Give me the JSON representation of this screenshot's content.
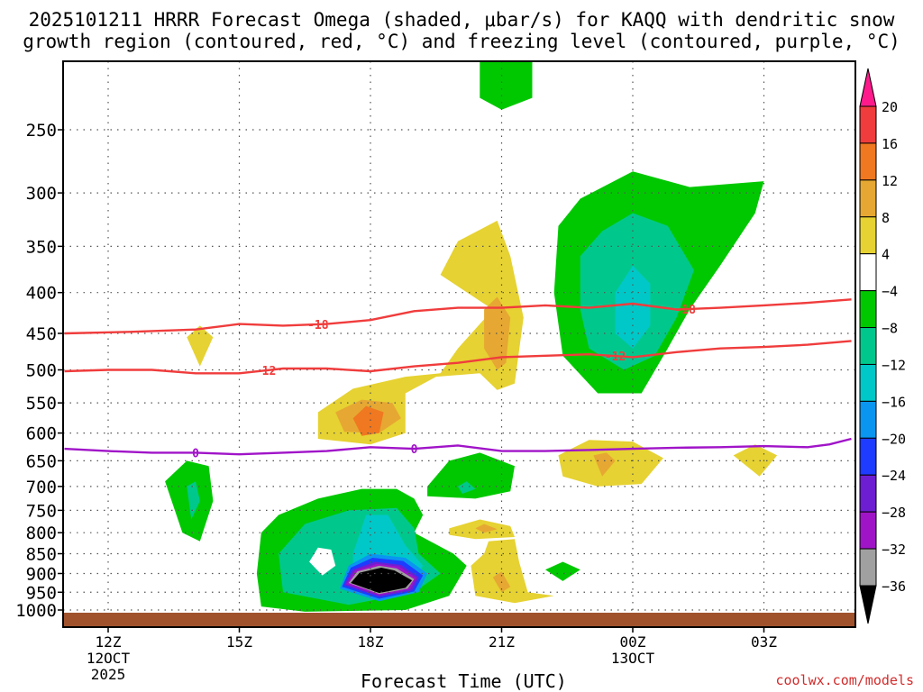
{
  "chart_data": {
    "type": "contour",
    "title": "2025101211 HRRR Forecast Omega (shaded, μbar/s) for KAQQ with dendritic snow",
    "title_line2": "growth region (contoured, red, °C) and freezing level (contoured, purple, °C)",
    "xlabel": "Forecast Time (UTC)",
    "ylabel": "",
    "y_ticks": [
      250,
      300,
      350,
      400,
      450,
      500,
      550,
      600,
      650,
      700,
      750,
      800,
      850,
      900,
      950,
      1000
    ],
    "x_ticks": [
      {
        "hour": 12,
        "label": "12Z",
        "sub1": "12OCT",
        "sub2": "2025"
      },
      {
        "hour": 15,
        "label": "15Z",
        "sub1": "",
        "sub2": ""
      },
      {
        "hour": 18,
        "label": "18Z",
        "sub1": "",
        "sub2": ""
      },
      {
        "hour": 21,
        "label": "21Z",
        "sub1": "",
        "sub2": ""
      },
      {
        "hour": 24,
        "label": "00Z",
        "sub1": "13OCT",
        "sub2": ""
      },
      {
        "hour": 27,
        "label": "03Z",
        "sub1": "",
        "sub2": ""
      }
    ],
    "xlim": [
      11,
      29
    ],
    "ylim_hpa": [
      1025,
      200
    ],
    "colorbar": {
      "levels": [
        20,
        16,
        12,
        8,
        4,
        -4,
        -8,
        -12,
        -16,
        -20,
        -24,
        -28,
        -32,
        -36
      ],
      "colors": [
        "#ff1a8c",
        "#f03c3c",
        "#f07820",
        "#e6a832",
        "#e6d232",
        "#ffffff",
        "#00c800",
        "#00c88c",
        "#00c8c8",
        "#0a96f0",
        "#1e3cff",
        "#6e1ed2",
        "#a014c8",
        "#a0a0a0",
        "#000000"
      ]
    },
    "contour_lines": [
      {
        "name": "-18 °C",
        "color": "#f03c3c",
        "label": "-18",
        "points": [
          [
            11,
            450
          ],
          [
            12.5,
            448
          ],
          [
            14,
            445
          ],
          [
            15,
            438
          ],
          [
            16,
            440
          ],
          [
            17,
            438
          ],
          [
            18,
            433
          ],
          [
            19,
            422
          ],
          [
            20,
            418
          ],
          [
            21,
            418
          ],
          [
            22,
            415
          ],
          [
            23,
            418
          ],
          [
            24,
            413
          ],
          [
            25,
            420
          ],
          [
            26,
            418
          ],
          [
            27,
            415
          ],
          [
            28,
            412
          ],
          [
            29,
            408
          ]
        ]
      },
      {
        "name": "-12 °C",
        "color": "#f03c3c",
        "label": "-12",
        "points": [
          [
            11,
            502
          ],
          [
            12,
            500
          ],
          [
            13,
            500
          ],
          [
            14,
            505
          ],
          [
            15,
            505
          ],
          [
            16,
            498
          ],
          [
            17,
            498
          ],
          [
            18,
            502
          ],
          [
            19,
            495
          ],
          [
            20,
            490
          ],
          [
            21,
            482
          ],
          [
            22,
            480
          ],
          [
            23,
            478
          ],
          [
            24,
            482
          ],
          [
            25,
            475
          ],
          [
            26,
            470
          ],
          [
            27,
            468
          ],
          [
            28,
            465
          ],
          [
            29,
            460
          ]
        ]
      },
      {
        "name": "0 °C freezing level",
        "color": "#a014c8",
        "label": "0",
        "points": [
          [
            11,
            628
          ],
          [
            12,
            632
          ],
          [
            13,
            635
          ],
          [
            14,
            635
          ],
          [
            15,
            638
          ],
          [
            16,
            635
          ],
          [
            17,
            632
          ],
          [
            18,
            625
          ],
          [
            19,
            628
          ],
          [
            20,
            622
          ],
          [
            21,
            632
          ],
          [
            22,
            632
          ],
          [
            23,
            630
          ],
          [
            24,
            628
          ],
          [
            25,
            626
          ],
          [
            26,
            625
          ],
          [
            27,
            623
          ],
          [
            28,
            625
          ],
          [
            28.5,
            620
          ],
          [
            29,
            610
          ]
        ]
      }
    ],
    "shaded_regions_summary": [
      {
        "region": "strong ascent core",
        "hour": 18,
        "pressure_hpa": 930,
        "omega_min": -36
      },
      {
        "region": "upper-level ascent",
        "hour": 24,
        "pressure_hpa": 400,
        "omega_min": -16
      },
      {
        "region": "descent maximum",
        "hour": 18,
        "pressure_hpa": 580,
        "omega_max": 12
      }
    ]
  },
  "credit": "coolwx.com/models",
  "colors": {
    "ground": "#a0522d",
    "grid": "#555555"
  }
}
